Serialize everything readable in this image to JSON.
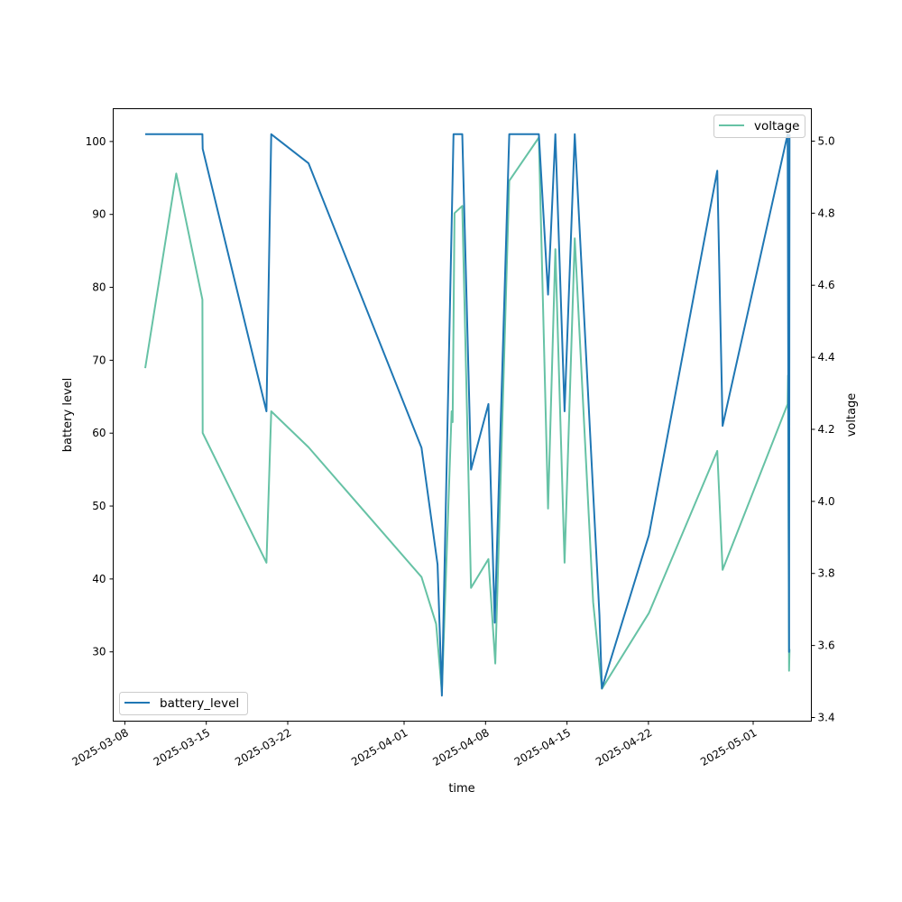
{
  "chart_data": {
    "type": "line",
    "title": "",
    "xlabel": "time",
    "ylabel": "battery level",
    "y2label": "voltage",
    "xlim": [
      "2025-03-07",
      "2025-05-06"
    ],
    "ylim": [
      20.5,
      104.5
    ],
    "y2lim": [
      3.39,
      5.09
    ],
    "x_ticks": [
      "2025-03-08",
      "2025-03-15",
      "2025-03-22",
      "2025-04-01",
      "2025-04-08",
      "2025-04-15",
      "2025-04-22",
      "2025-05-01"
    ],
    "y_ticks": [
      30,
      40,
      50,
      60,
      70,
      80,
      90,
      100
    ],
    "y2_ticks": [
      3.4,
      3.6,
      3.8,
      4.0,
      4.2,
      4.4,
      4.6,
      4.8,
      5.0
    ],
    "y2_tick_labels": [
      "3.4",
      "3.6",
      "3.8",
      "4.0",
      "4.2",
      "4.4",
      "4.6",
      "4.8",
      "5.0"
    ],
    "grid": false,
    "series": [
      {
        "name": "battery_level",
        "axis": "left",
        "color": "#1f77b4",
        "legend_position": "lower-left",
        "points": [
          [
            "2025-03-09T18:00",
            101
          ],
          [
            "2025-03-14T16:00",
            101
          ],
          [
            "2025-03-14T16:30",
            99
          ],
          [
            "2025-03-20T04:00",
            63
          ],
          [
            "2025-03-20T14:00",
            101
          ],
          [
            "2025-03-23T19:00",
            97
          ],
          [
            "2025-04-02T12:00",
            58
          ],
          [
            "2025-04-03T21:00",
            42
          ],
          [
            "2025-04-04T06:00",
            24
          ],
          [
            "2025-04-05T06:00",
            101
          ],
          [
            "2025-04-06T00:00",
            101
          ],
          [
            "2025-04-06T18:00",
            55
          ],
          [
            "2025-04-08T06:00",
            64
          ],
          [
            "2025-04-08T19:00",
            34
          ],
          [
            "2025-04-10T01:00",
            101
          ],
          [
            "2025-04-12T14:00",
            101
          ],
          [
            "2025-04-13T09:00",
            79
          ],
          [
            "2025-04-14T00:00",
            101
          ],
          [
            "2025-04-14T19:00",
            63
          ],
          [
            "2025-04-15T16:00",
            101
          ],
          [
            "2025-04-17T19:00",
            35
          ],
          [
            "2025-04-18T00:00",
            25
          ],
          [
            "2025-04-22T01:00",
            46
          ],
          [
            "2025-04-27T22:00",
            96
          ],
          [
            "2025-04-28T09:00",
            61
          ],
          [
            "2025-05-03T23:00",
            101
          ],
          [
            "2025-05-04T02:00",
            30
          ],
          [
            "2025-05-04T03:00",
            101
          ]
        ]
      },
      {
        "name": "voltage",
        "axis": "right",
        "color": "#66c2a5",
        "legend_position": "upper-right",
        "points": [
          [
            "2025-03-09T18:00",
            4.37
          ],
          [
            "2025-03-12T10:00",
            4.91
          ],
          [
            "2025-03-14T16:00",
            4.56
          ],
          [
            "2025-03-14T16:30",
            4.19
          ],
          [
            "2025-03-20T04:00",
            3.83
          ],
          [
            "2025-03-20T14:00",
            4.25
          ],
          [
            "2025-03-23T19:00",
            4.15
          ],
          [
            "2025-04-02T12:00",
            3.79
          ],
          [
            "2025-04-03T18:00",
            3.66
          ],
          [
            "2025-04-04T06:00",
            3.47
          ],
          [
            "2025-04-05T02:00",
            4.25
          ],
          [
            "2025-04-05T04:00",
            4.22
          ],
          [
            "2025-04-05T08:00",
            4.8
          ],
          [
            "2025-04-06T00:00",
            4.82
          ],
          [
            "2025-04-06T18:00",
            3.76
          ],
          [
            "2025-04-08T06:00",
            3.84
          ],
          [
            "2025-04-08T20:00",
            3.55
          ],
          [
            "2025-04-10T01:00",
            4.89
          ],
          [
            "2025-04-12T14:00",
            5.01
          ],
          [
            "2025-04-13T09:00",
            3.98
          ],
          [
            "2025-04-14T00:00",
            4.7
          ],
          [
            "2025-04-14T19:00",
            3.83
          ],
          [
            "2025-04-15T16:00",
            4.73
          ],
          [
            "2025-04-17T06:00",
            3.72
          ],
          [
            "2025-04-18T00:00",
            3.48
          ],
          [
            "2025-04-22T01:00",
            3.69
          ],
          [
            "2025-04-27T22:00",
            4.14
          ],
          [
            "2025-04-28T09:00",
            3.81
          ],
          [
            "2025-05-03T23:00",
            4.27
          ],
          [
            "2025-05-04T00:00",
            4.35
          ],
          [
            "2025-05-04T02:00",
            3.53
          ],
          [
            "2025-05-04T03:00",
            3.59
          ]
        ]
      }
    ]
  }
}
